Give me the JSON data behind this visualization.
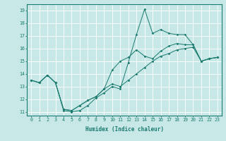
{
  "xlabel": "Humidex (Indice chaleur)",
  "bg_color": "#c8e8e8",
  "grid_color": "#ffffff",
  "line_color": "#1a7a6e",
  "xlim": [
    -0.5,
    23.5
  ],
  "ylim": [
    10.7,
    19.5
  ],
  "xticks": [
    0,
    1,
    2,
    3,
    4,
    5,
    6,
    7,
    8,
    9,
    10,
    11,
    12,
    13,
    14,
    15,
    16,
    17,
    18,
    19,
    20,
    21,
    22,
    23
  ],
  "yticks": [
    11,
    12,
    13,
    14,
    15,
    16,
    17,
    18,
    19
  ],
  "line1_x": [
    0,
    1,
    2,
    3,
    4,
    5,
    6,
    7,
    8,
    9,
    10,
    11,
    12,
    13,
    14,
    15,
    16,
    17,
    18,
    19,
    20,
    21,
    22,
    23
  ],
  "line1_y": [
    13.5,
    13.3,
    13.9,
    13.3,
    11.1,
    11.0,
    11.1,
    11.5,
    12.1,
    12.5,
    13.0,
    12.8,
    14.9,
    17.1,
    19.1,
    17.2,
    17.5,
    17.2,
    17.1,
    17.1,
    16.3,
    15.0,
    15.2,
    15.3
  ],
  "line2_x": [
    0,
    1,
    2,
    3,
    4,
    5,
    6,
    7,
    8,
    9,
    10,
    11,
    12,
    13,
    14,
    15,
    16,
    17,
    18,
    19,
    20,
    21,
    22,
    23
  ],
  "line2_y": [
    13.5,
    13.3,
    13.9,
    13.3,
    11.2,
    11.1,
    11.5,
    11.9,
    12.2,
    12.8,
    14.3,
    15.0,
    15.3,
    15.9,
    15.4,
    15.2,
    15.8,
    16.2,
    16.4,
    16.3,
    16.3,
    15.0,
    15.2,
    15.3
  ],
  "line3_x": [
    0,
    1,
    2,
    3,
    4,
    5,
    6,
    7,
    8,
    9,
    10,
    11,
    12,
    13,
    14,
    15,
    16,
    17,
    18,
    19,
    20,
    21,
    22,
    23
  ],
  "line3_y": [
    13.5,
    13.3,
    13.9,
    13.3,
    11.2,
    11.1,
    11.5,
    11.9,
    12.2,
    12.8,
    13.2,
    13.0,
    13.5,
    14.0,
    14.5,
    15.0,
    15.4,
    15.6,
    15.9,
    16.0,
    16.1,
    15.0,
    15.2,
    15.3
  ],
  "xlabel_fontsize": 5.5,
  "tick_fontsize": 4.8
}
